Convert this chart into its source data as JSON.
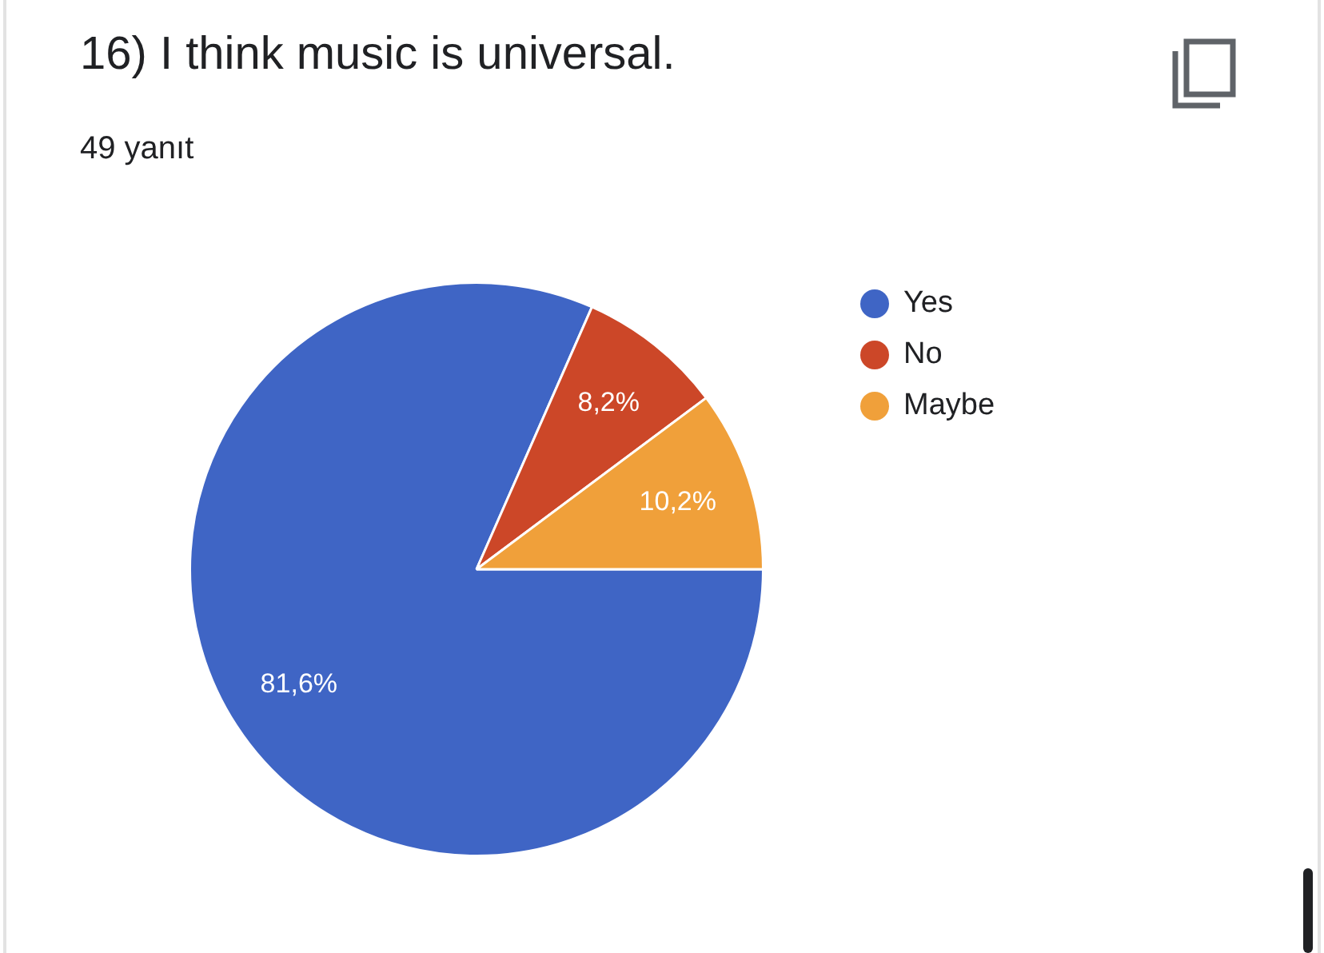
{
  "chart_data": {
    "type": "pie",
    "title": "16) I think music is universal.",
    "subtitle": "49 yanıt",
    "categories": [
      "Yes",
      "No",
      "Maybe"
    ],
    "values": [
      81.6,
      8.2,
      10.2
    ],
    "value_labels": [
      "81,6%",
      "8,2%",
      "10,2%"
    ],
    "colors": [
      "#3f65c5",
      "#cc4728",
      "#f0a03a"
    ],
    "legend": "right"
  }
}
